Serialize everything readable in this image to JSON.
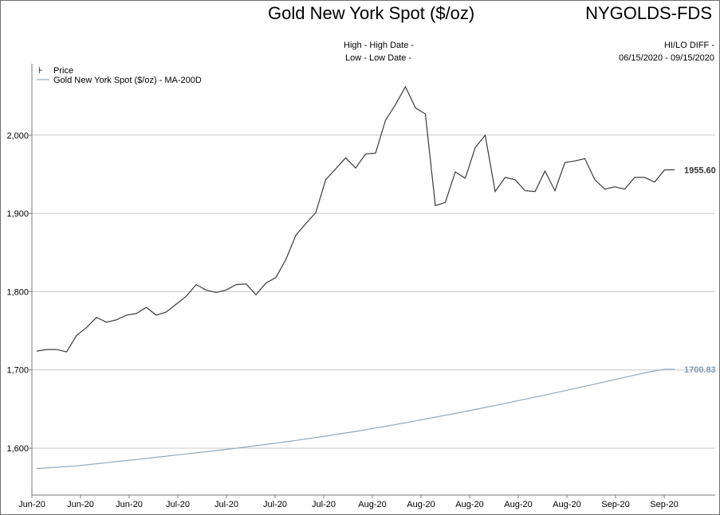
{
  "header": {
    "title": "Gold New York Spot ($/oz)",
    "code": "NYGOLDS-FDS",
    "high_label": "High - High Date -",
    "low_label": "Low - Low Date -",
    "hilo_label": "HI/LO DIFF -",
    "date_range": "06/15/2020 - 09/15/2020"
  },
  "colors": {
    "price": "#3a3a3a",
    "ma": "#8fa9bf",
    "grid": "#c8c8c8",
    "axis": "#7a7a7a"
  },
  "chart_data": {
    "type": "line",
    "x_labels": [
      "Jun-20",
      "Jun-20",
      "Jun-20",
      "Jul-20",
      "Jul-20",
      "Jul-20",
      "Jul-20",
      "Aug-20",
      "Aug-20",
      "Aug-20",
      "Aug-20",
      "Aug-20",
      "Sep-20",
      "Sep-20"
    ],
    "ylim": [
      1550,
      2090
    ],
    "yticks": [
      1600,
      1700,
      1800,
      1900,
      2000
    ],
    "ytick_labels": [
      "1,600",
      "1,700",
      "1,800",
      "1,900",
      "2,000"
    ],
    "grid": true,
    "legend_position": "top-left",
    "series": [
      {
        "name": "Price",
        "last_value_label": "1955.60",
        "values": [
          1724,
          1726,
          1726,
          1723,
          1744,
          1754,
          1767,
          1761,
          1764,
          1770,
          1772,
          1780,
          1770,
          1774,
          1784,
          1794,
          1809,
          1802,
          1799,
          1802,
          1809,
          1810,
          1796,
          1811,
          1818,
          1841,
          1872,
          1887,
          1901,
          1943,
          1957,
          1971,
          1958,
          1976,
          1977,
          2019,
          2039,
          2062,
          2035,
          2027,
          1910,
          1914,
          1953,
          1945,
          1984,
          2000,
          1928,
          1946,
          1943,
          1929,
          1928,
          1954,
          1929,
          1965,
          1967,
          1970,
          1943,
          1931,
          1934,
          1931,
          1946,
          1946,
          1940,
          1955.6,
          1955.6
        ]
      },
      {
        "name": "Gold New York Spot ($/oz) - MA-200D",
        "last_value_label": "1700.83",
        "values": [
          1574.0,
          1574.8,
          1575.6,
          1576.4,
          1577.3,
          1578.6,
          1580.0,
          1581.4,
          1582.8,
          1584.2,
          1585.5,
          1586.9,
          1588.3,
          1589.7,
          1591.1,
          1592.6,
          1594.0,
          1595.4,
          1596.9,
          1598.4,
          1599.9,
          1601.5,
          1603.1,
          1604.7,
          1606.4,
          1608.1,
          1609.9,
          1611.7,
          1613.5,
          1615.4,
          1617.4,
          1619.4,
          1621.4,
          1623.5,
          1625.7,
          1627.9,
          1630.2,
          1632.5,
          1634.8,
          1637.2,
          1639.6,
          1642.0,
          1644.4,
          1646.9,
          1649.4,
          1652.0,
          1654.6,
          1657.2,
          1659.8,
          1662.5,
          1665.2,
          1667.9,
          1670.6,
          1673.4,
          1676.2,
          1679.0,
          1681.8,
          1684.7,
          1687.6,
          1690.4,
          1693.3,
          1696.1,
          1698.6,
          1700.83,
          1700.83
        ]
      }
    ]
  }
}
